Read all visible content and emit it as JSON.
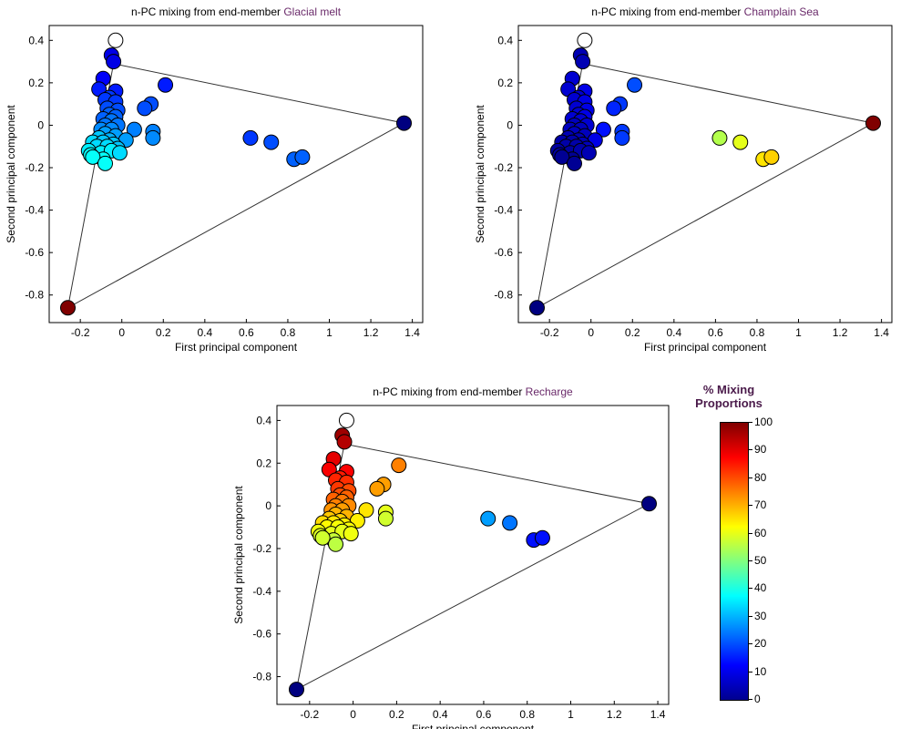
{
  "chart_data": [
    {
      "type": "scatter",
      "title": "n-PC mixing from end-member",
      "title_member": "Glacial melt",
      "xlabel": "First principal component",
      "ylabel": "Second principal component",
      "xlim": [
        -0.35,
        1.45
      ],
      "ylim": [
        -0.93,
        0.47
      ],
      "xticks": [
        "-0.2",
        "0",
        "0.2",
        "0.4",
        "0.6",
        "0.8",
        "1",
        "1.2",
        "1.4"
      ],
      "yticks": [
        "0.4",
        "0.2",
        "0",
        "-0.2",
        "-0.4",
        "-0.6",
        "-0.8"
      ],
      "triangle": [
        [
          -0.04,
          0.29
        ],
        [
          1.36,
          0.01
        ],
        [
          -0.26,
          -0.86
        ]
      ],
      "points": [
        {
          "x": -0.03,
          "y": 0.4,
          "p": null
        },
        {
          "x": -0.05,
          "y": 0.33,
          "p": 10
        },
        {
          "x": -0.04,
          "y": 0.3,
          "p": 10
        },
        {
          "x": 1.36,
          "y": 0.01,
          "p": 0
        },
        {
          "x": -0.26,
          "y": -0.86,
          "p": 100
        },
        {
          "x": 0.21,
          "y": 0.19,
          "p": 15
        },
        {
          "x": -0.09,
          "y": 0.22,
          "p": 12
        },
        {
          "x": -0.11,
          "y": 0.17,
          "p": 15
        },
        {
          "x": -0.03,
          "y": 0.16,
          "p": 15
        },
        {
          "x": -0.06,
          "y": 0.13,
          "p": 18
        },
        {
          "x": -0.08,
          "y": 0.12,
          "p": 18
        },
        {
          "x": -0.03,
          "y": 0.11,
          "p": 18
        },
        {
          "x": 0.14,
          "y": 0.1,
          "p": 20
        },
        {
          "x": 0.11,
          "y": 0.08,
          "p": 20
        },
        {
          "x": -0.07,
          "y": 0.08,
          "p": 20
        },
        {
          "x": -0.02,
          "y": 0.07,
          "p": 20
        },
        {
          "x": -0.06,
          "y": 0.05,
          "p": 22
        },
        {
          "x": -0.03,
          "y": 0.04,
          "p": 22
        },
        {
          "x": -0.09,
          "y": 0.03,
          "p": 22
        },
        {
          "x": -0.05,
          "y": 0.02,
          "p": 24
        },
        {
          "x": -0.08,
          "y": 0.0,
          "p": 24
        },
        {
          "x": -0.02,
          "y": 0.0,
          "p": 24
        },
        {
          "x": -0.1,
          "y": -0.02,
          "p": 26
        },
        {
          "x": -0.05,
          "y": -0.02,
          "p": 26
        },
        {
          "x": 0.06,
          "y": -0.02,
          "p": 25
        },
        {
          "x": 0.15,
          "y": -0.03,
          "p": 25
        },
        {
          "x": -0.08,
          "y": -0.04,
          "p": 28
        },
        {
          "x": -0.03,
          "y": -0.05,
          "p": 28
        },
        {
          "x": 0.15,
          "y": -0.06,
          "p": 26
        },
        {
          "x": -0.11,
          "y": -0.06,
          "p": 32
        },
        {
          "x": -0.06,
          "y": -0.07,
          "p": 30
        },
        {
          "x": 0.02,
          "y": -0.07,
          "p": 28
        },
        {
          "x": -0.14,
          "y": -0.08,
          "p": 34
        },
        {
          "x": -0.09,
          "y": -0.08,
          "p": 32
        },
        {
          "x": -0.04,
          "y": -0.09,
          "p": 32
        },
        {
          "x": -0.12,
          "y": -0.1,
          "p": 34
        },
        {
          "x": -0.07,
          "y": -0.1,
          "p": 34
        },
        {
          "x": -0.02,
          "y": -0.11,
          "p": 32
        },
        {
          "x": -0.16,
          "y": -0.12,
          "p": 36
        },
        {
          "x": -0.1,
          "y": -0.13,
          "p": 36
        },
        {
          "x": -0.05,
          "y": -0.12,
          "p": 36
        },
        {
          "x": -0.15,
          "y": -0.14,
          "p": 38
        },
        {
          "x": -0.01,
          "y": -0.13,
          "p": 34
        },
        {
          "x": -0.09,
          "y": -0.16,
          "p": 38
        },
        {
          "x": -0.14,
          "y": -0.15,
          "p": 38
        },
        {
          "x": -0.08,
          "y": -0.18,
          "p": 38
        },
        {
          "x": 0.62,
          "y": -0.06,
          "p": 18
        },
        {
          "x": 0.72,
          "y": -0.08,
          "p": 20
        },
        {
          "x": 0.83,
          "y": -0.16,
          "p": 22
        },
        {
          "x": 0.87,
          "y": -0.15,
          "p": 22
        }
      ]
    },
    {
      "type": "scatter",
      "title": "n-PC mixing from end-member",
      "title_member": "Champlain Sea",
      "xlabel": "First principal component",
      "ylabel": "Second principal component",
      "xlim": [
        -0.35,
        1.45
      ],
      "ylim": [
        -0.93,
        0.47
      ],
      "xticks": [
        "-0.2",
        "0",
        "0.2",
        "0.4",
        "0.6",
        "0.8",
        "1",
        "1.2",
        "1.4"
      ],
      "yticks": [
        "0.4",
        "0.2",
        "0",
        "-0.2",
        "-0.4",
        "-0.6",
        "-0.8"
      ],
      "triangle": [
        [
          -0.04,
          0.29
        ],
        [
          1.36,
          0.01
        ],
        [
          -0.26,
          -0.86
        ]
      ],
      "points": [
        {
          "x": -0.03,
          "y": 0.4,
          "p": null
        },
        {
          "x": -0.05,
          "y": 0.33,
          "p": 5
        },
        {
          "x": -0.04,
          "y": 0.3,
          "p": 5
        },
        {
          "x": 1.36,
          "y": 0.01,
          "p": 100
        },
        {
          "x": -0.26,
          "y": -0.86,
          "p": 0
        },
        {
          "x": 0.21,
          "y": 0.19,
          "p": 20
        },
        {
          "x": -0.09,
          "y": 0.22,
          "p": 8
        },
        {
          "x": -0.11,
          "y": 0.17,
          "p": 8
        },
        {
          "x": -0.03,
          "y": 0.16,
          "p": 10
        },
        {
          "x": -0.06,
          "y": 0.13,
          "p": 8
        },
        {
          "x": -0.08,
          "y": 0.12,
          "p": 8
        },
        {
          "x": -0.03,
          "y": 0.11,
          "p": 10
        },
        {
          "x": 0.14,
          "y": 0.1,
          "p": 18
        },
        {
          "x": 0.11,
          "y": 0.08,
          "p": 16
        },
        {
          "x": -0.07,
          "y": 0.08,
          "p": 8
        },
        {
          "x": -0.02,
          "y": 0.07,
          "p": 10
        },
        {
          "x": -0.06,
          "y": 0.05,
          "p": 8
        },
        {
          "x": -0.03,
          "y": 0.04,
          "p": 10
        },
        {
          "x": -0.09,
          "y": 0.03,
          "p": 8
        },
        {
          "x": -0.05,
          "y": 0.02,
          "p": 8
        },
        {
          "x": -0.08,
          "y": 0.0,
          "p": 6
        },
        {
          "x": -0.02,
          "y": 0.0,
          "p": 8
        },
        {
          "x": -0.1,
          "y": -0.02,
          "p": 6
        },
        {
          "x": -0.05,
          "y": -0.02,
          "p": 6
        },
        {
          "x": 0.06,
          "y": -0.02,
          "p": 14
        },
        {
          "x": 0.15,
          "y": -0.03,
          "p": 18
        },
        {
          "x": -0.08,
          "y": -0.04,
          "p": 6
        },
        {
          "x": -0.03,
          "y": -0.05,
          "p": 6
        },
        {
          "x": 0.15,
          "y": -0.06,
          "p": 18
        },
        {
          "x": -0.11,
          "y": -0.06,
          "p": 5
        },
        {
          "x": -0.06,
          "y": -0.07,
          "p": 5
        },
        {
          "x": 0.02,
          "y": -0.07,
          "p": 10
        },
        {
          "x": -0.14,
          "y": -0.08,
          "p": 4
        },
        {
          "x": -0.09,
          "y": -0.08,
          "p": 4
        },
        {
          "x": -0.04,
          "y": -0.09,
          "p": 5
        },
        {
          "x": -0.12,
          "y": -0.1,
          "p": 4
        },
        {
          "x": -0.07,
          "y": -0.1,
          "p": 4
        },
        {
          "x": -0.02,
          "y": -0.11,
          "p": 6
        },
        {
          "x": -0.16,
          "y": -0.12,
          "p": 3
        },
        {
          "x": -0.1,
          "y": -0.13,
          "p": 3
        },
        {
          "x": -0.05,
          "y": -0.12,
          "p": 4
        },
        {
          "x": -0.15,
          "y": -0.14,
          "p": 3
        },
        {
          "x": -0.01,
          "y": -0.13,
          "p": 5
        },
        {
          "x": -0.09,
          "y": -0.16,
          "p": 2
        },
        {
          "x": -0.14,
          "y": -0.15,
          "p": 2
        },
        {
          "x": -0.08,
          "y": -0.18,
          "p": 2
        },
        {
          "x": 0.62,
          "y": -0.06,
          "p": 55
        },
        {
          "x": 0.72,
          "y": -0.08,
          "p": 60
        },
        {
          "x": 0.83,
          "y": -0.16,
          "p": 65
        },
        {
          "x": 0.87,
          "y": -0.15,
          "p": 67
        }
      ]
    },
    {
      "type": "scatter",
      "title": "n-PC mixing from end-member",
      "title_member": "Recharge",
      "xlabel": "First principal component",
      "ylabel": "Second principal component",
      "xlim": [
        -0.35,
        1.45
      ],
      "ylim": [
        -0.93,
        0.47
      ],
      "xticks": [
        "-0.2",
        "0",
        "0.2",
        "0.4",
        "0.6",
        "0.8",
        "1",
        "1.2",
        "1.4"
      ],
      "yticks": [
        "0.4",
        "0.2",
        "0",
        "-0.2",
        "-0.4",
        "-0.6",
        "-0.8"
      ],
      "triangle": [
        [
          -0.04,
          0.29
        ],
        [
          1.36,
          0.01
        ],
        [
          -0.26,
          -0.86
        ]
      ],
      "points": [
        {
          "x": -0.03,
          "y": 0.4,
          "p": null
        },
        {
          "x": -0.05,
          "y": 0.33,
          "p": 97
        },
        {
          "x": -0.04,
          "y": 0.3,
          "p": 95
        },
        {
          "x": 1.36,
          "y": 0.01,
          "p": 0
        },
        {
          "x": -0.26,
          "y": -0.86,
          "p": 0
        },
        {
          "x": 0.21,
          "y": 0.19,
          "p": 75
        },
        {
          "x": -0.09,
          "y": 0.22,
          "p": 90
        },
        {
          "x": -0.11,
          "y": 0.17,
          "p": 88
        },
        {
          "x": -0.03,
          "y": 0.16,
          "p": 88
        },
        {
          "x": -0.06,
          "y": 0.13,
          "p": 85
        },
        {
          "x": -0.08,
          "y": 0.12,
          "p": 84
        },
        {
          "x": -0.03,
          "y": 0.11,
          "p": 83
        },
        {
          "x": 0.14,
          "y": 0.1,
          "p": 72
        },
        {
          "x": 0.11,
          "y": 0.08,
          "p": 72
        },
        {
          "x": -0.07,
          "y": 0.08,
          "p": 82
        },
        {
          "x": -0.02,
          "y": 0.07,
          "p": 80
        },
        {
          "x": -0.06,
          "y": 0.05,
          "p": 80
        },
        {
          "x": -0.03,
          "y": 0.04,
          "p": 78
        },
        {
          "x": -0.09,
          "y": 0.03,
          "p": 78
        },
        {
          "x": -0.05,
          "y": 0.02,
          "p": 76
        },
        {
          "x": -0.08,
          "y": 0.0,
          "p": 75
        },
        {
          "x": -0.02,
          "y": 0.0,
          "p": 74
        },
        {
          "x": -0.1,
          "y": -0.02,
          "p": 73
        },
        {
          "x": -0.05,
          "y": -0.02,
          "p": 72
        },
        {
          "x": 0.06,
          "y": -0.02,
          "p": 65
        },
        {
          "x": 0.15,
          "y": -0.03,
          "p": 60
        },
        {
          "x": -0.08,
          "y": -0.04,
          "p": 70
        },
        {
          "x": -0.03,
          "y": -0.05,
          "p": 70
        },
        {
          "x": 0.15,
          "y": -0.06,
          "p": 58
        },
        {
          "x": -0.11,
          "y": -0.06,
          "p": 68
        },
        {
          "x": -0.06,
          "y": -0.07,
          "p": 67
        },
        {
          "x": 0.02,
          "y": -0.07,
          "p": 64
        },
        {
          "x": -0.14,
          "y": -0.08,
          "p": 66
        },
        {
          "x": -0.09,
          "y": -0.08,
          "p": 65
        },
        {
          "x": -0.04,
          "y": -0.09,
          "p": 64
        },
        {
          "x": -0.12,
          "y": -0.1,
          "p": 63
        },
        {
          "x": -0.07,
          "y": -0.1,
          "p": 62
        },
        {
          "x": -0.02,
          "y": -0.11,
          "p": 62
        },
        {
          "x": -0.16,
          "y": -0.12,
          "p": 61
        },
        {
          "x": -0.1,
          "y": -0.13,
          "p": 60
        },
        {
          "x": -0.05,
          "y": -0.12,
          "p": 60
        },
        {
          "x": -0.15,
          "y": -0.14,
          "p": 59
        },
        {
          "x": -0.01,
          "y": -0.13,
          "p": 61
        },
        {
          "x": -0.09,
          "y": -0.16,
          "p": 57
        },
        {
          "x": -0.14,
          "y": -0.15,
          "p": 58
        },
        {
          "x": -0.08,
          "y": -0.18,
          "p": 56
        },
        {
          "x": 0.62,
          "y": -0.06,
          "p": 28
        },
        {
          "x": 0.72,
          "y": -0.08,
          "p": 24
        },
        {
          "x": 0.83,
          "y": -0.16,
          "p": 14
        },
        {
          "x": 0.87,
          "y": -0.15,
          "p": 14
        }
      ]
    }
  ],
  "colorbar": {
    "title_line1": "% Mixing",
    "title_line2": "Proportions",
    "ticks": [
      "100",
      "90",
      "80",
      "70",
      "60",
      "50",
      "40",
      "30",
      "20",
      "10",
      "0"
    ],
    "range": [
      0,
      100
    ]
  },
  "colors": {
    "title_member": "#6a2a6a",
    "triangle": "#333333"
  }
}
